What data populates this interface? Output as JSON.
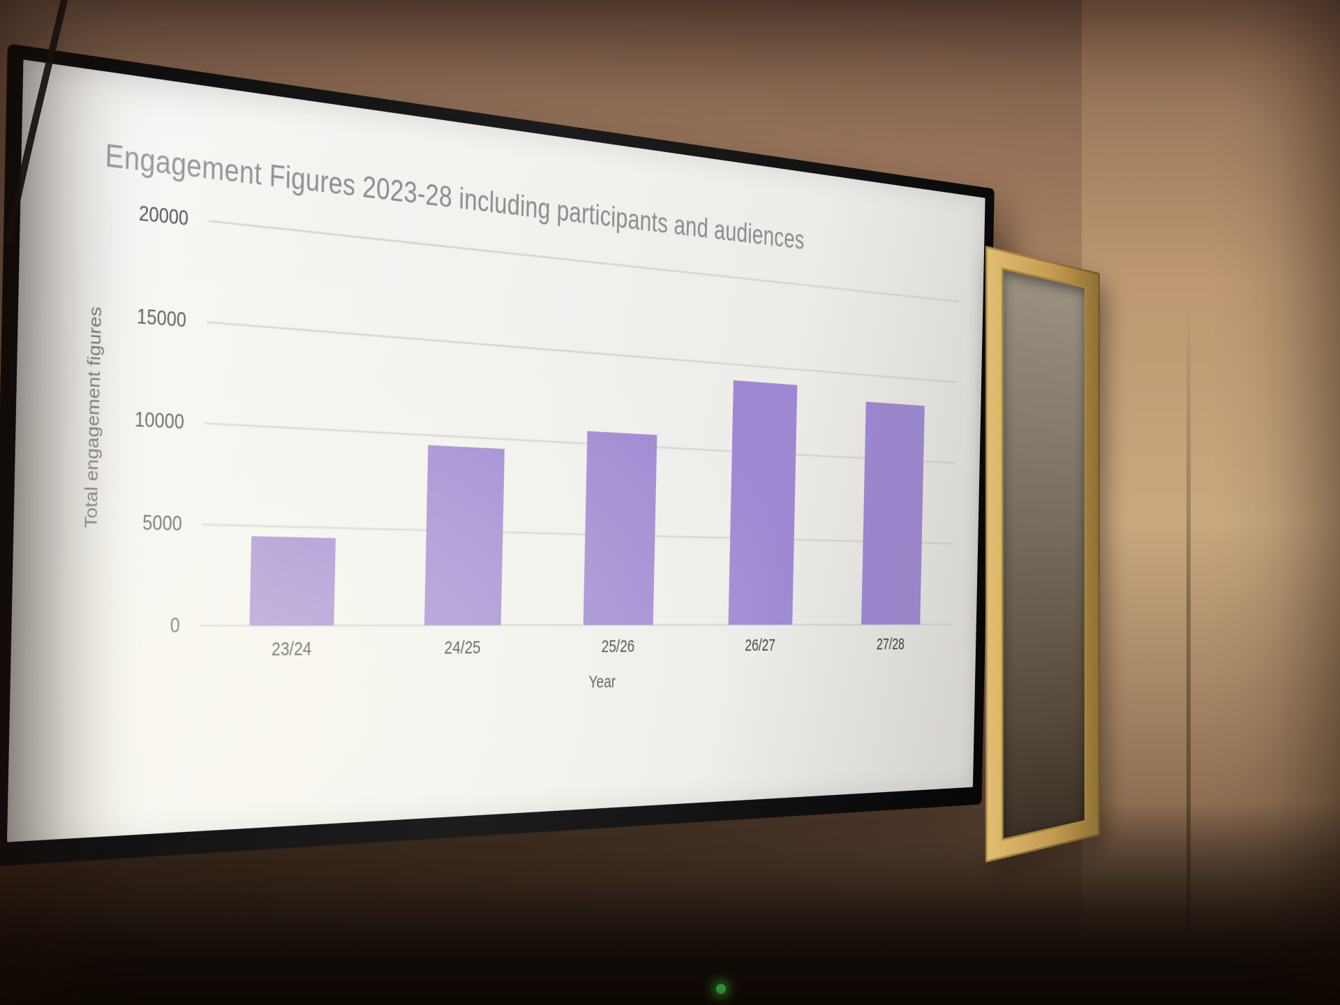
{
  "scene": {
    "description": "Photograph of a wall-mounted TV displaying a presentation slide with a bar chart; gold picture frame on the right wall and a green device LED below the TV",
    "wall_color": "#a87f5f",
    "tv_bezel_color": "#111111",
    "screen_color": "#f3f2ef",
    "picture_frame_color": "#c9a253",
    "power_led_color": "#41e851"
  },
  "chart_data": {
    "type": "bar",
    "title": "Engagement Figures 2023-28 including participants and audiences",
    "xlabel": "Year",
    "ylabel": "Total engagement figures",
    "categories": [
      "23/24",
      "24/25",
      "25/26",
      "26/27",
      "27/28"
    ],
    "values": [
      4500,
      9500,
      10700,
      14100,
      13400
    ],
    "ylim": [
      0,
      20000
    ],
    "yticks": [
      0,
      5000,
      10000,
      15000,
      20000
    ],
    "grid": true,
    "legend": false,
    "bar_color": "#9e88d3",
    "gridline_color": "#d6d4d0",
    "title_color": "#8c8c8c",
    "axis_text_color": "#3f3f3f"
  }
}
